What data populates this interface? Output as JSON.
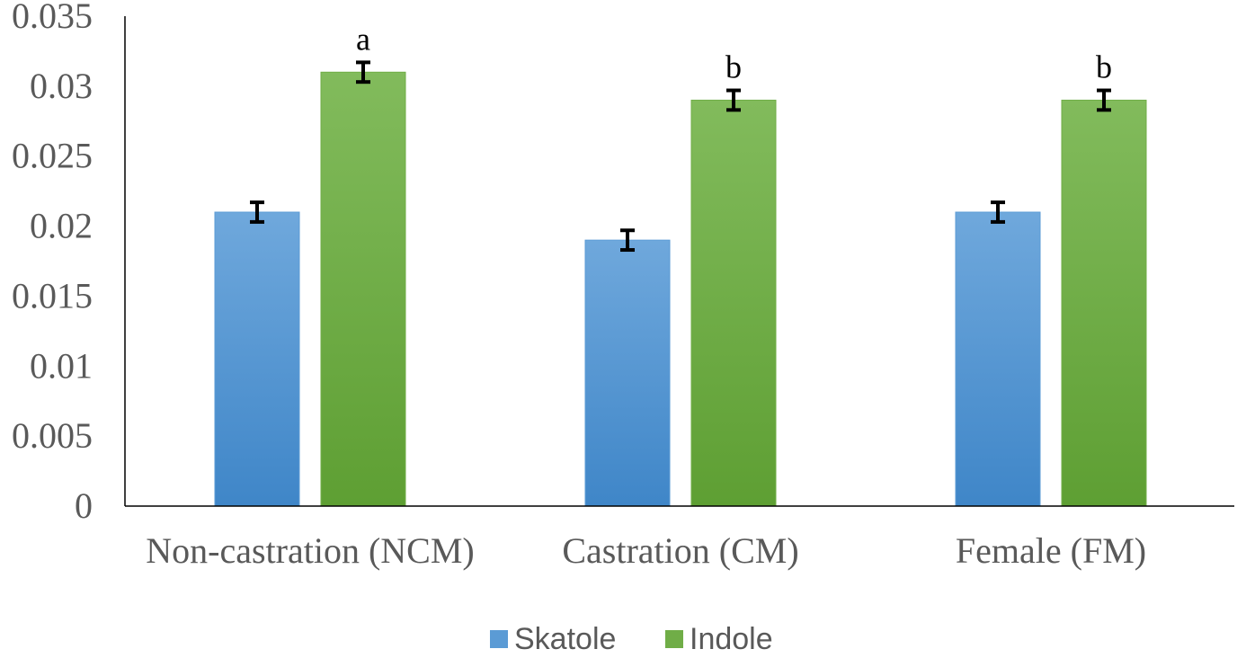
{
  "chart_data": {
    "type": "bar",
    "categories": [
      "Non-castration (NCM)",
      "Castration (CM)",
      "Female (FM)"
    ],
    "series": [
      {
        "name": "Skatole",
        "values": [
          0.021,
          0.019,
          0.021
        ],
        "errors": [
          0.0007,
          0.0007,
          0.0007
        ],
        "color": "#5b9bd5",
        "labels": [
          "",
          "",
          ""
        ]
      },
      {
        "name": "Indole",
        "values": [
          0.031,
          0.029,
          0.029
        ],
        "errors": [
          0.0007,
          0.0007,
          0.0007
        ],
        "color": "#70ad47",
        "labels": [
          "a",
          "b",
          "b"
        ]
      }
    ],
    "yticks": [
      "0",
      "0.005",
      "0.01",
      "0.015",
      "0.02",
      "0.025",
      "0.03",
      "0.035"
    ],
    "ylim": [
      0,
      0.035
    ],
    "title": "",
    "xlabel": "",
    "ylabel": "",
    "grid": false,
    "legend_position": "bottom"
  }
}
